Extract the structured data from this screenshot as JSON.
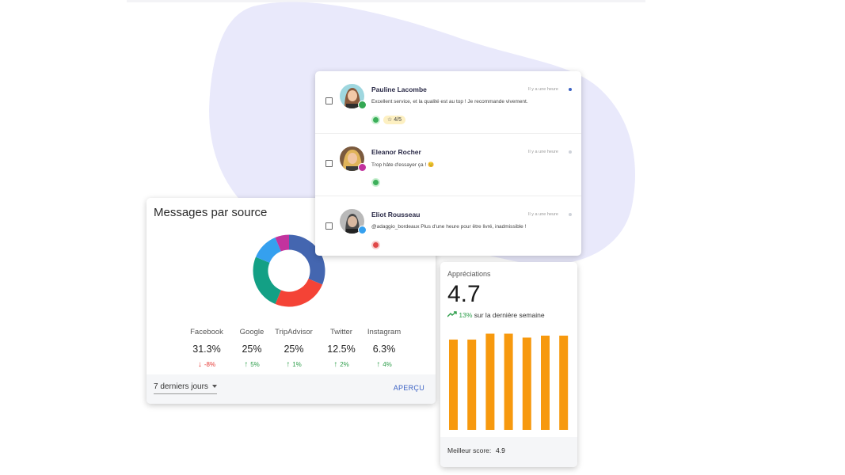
{
  "messages_card": {
    "title": "Messages par source",
    "sources": [
      {
        "name": "Facebook",
        "value": "31.3%",
        "change": "-8%",
        "direction": "down",
        "share": 31.3,
        "color": "#4466b0"
      },
      {
        "name": "Google",
        "value": "25%",
        "change": "5%",
        "direction": "up",
        "share": 25,
        "color": "#f44336"
      },
      {
        "name": "TripAdvisor",
        "value": "25%",
        "change": "1%",
        "direction": "up",
        "share": 25,
        "color": "#13a085"
      },
      {
        "name": "Twitter",
        "value": "12.5%",
        "change": "2%",
        "direction": "up",
        "share": 12.5,
        "color": "#35a0ef"
      },
      {
        "name": "Instagram",
        "value": "6.3%",
        "change": "4%",
        "direction": "up",
        "share": 6.3,
        "color": "#c2339e"
      }
    ],
    "period": "7 derniers jours",
    "apercu": "APERÇU"
  },
  "reviews": [
    {
      "name": "Pauline Lacombe",
      "time": "Il y a une heure",
      "text": "Excellent service, et la qualité est au top ! Je recommande vivement.",
      "rating": "4/5",
      "sentiment": "positive",
      "source_icon": "tripadvisor-icon",
      "unread": true
    },
    {
      "name": "Eleanor Rocher",
      "time": "Il y a une heure",
      "text": "Trop hâte d'essayer ça ! 😊",
      "rating": "",
      "sentiment": "positive",
      "source_icon": "instagram-icon",
      "unread": false
    },
    {
      "name": "Eliot Rousseau",
      "time": "Il y a une heure",
      "text": "@adaggio_bordeaux Plus d'une heure pour être livré, inadmissible !",
      "rating": "",
      "sentiment": "negative",
      "source_icon": "twitter-icon",
      "unread": false
    }
  ],
  "appreciations": {
    "title": "Appréciations",
    "score": "4.7",
    "trend_pct": "13%",
    "trend_text": "sur la dernière semaine",
    "bar_values": [
      4.6,
      4.6,
      4.9,
      4.9,
      4.7,
      4.8,
      4.8
    ],
    "bar_color": "#f7990e",
    "best_label": "Meilleur score:",
    "best_value": "4.9"
  }
}
